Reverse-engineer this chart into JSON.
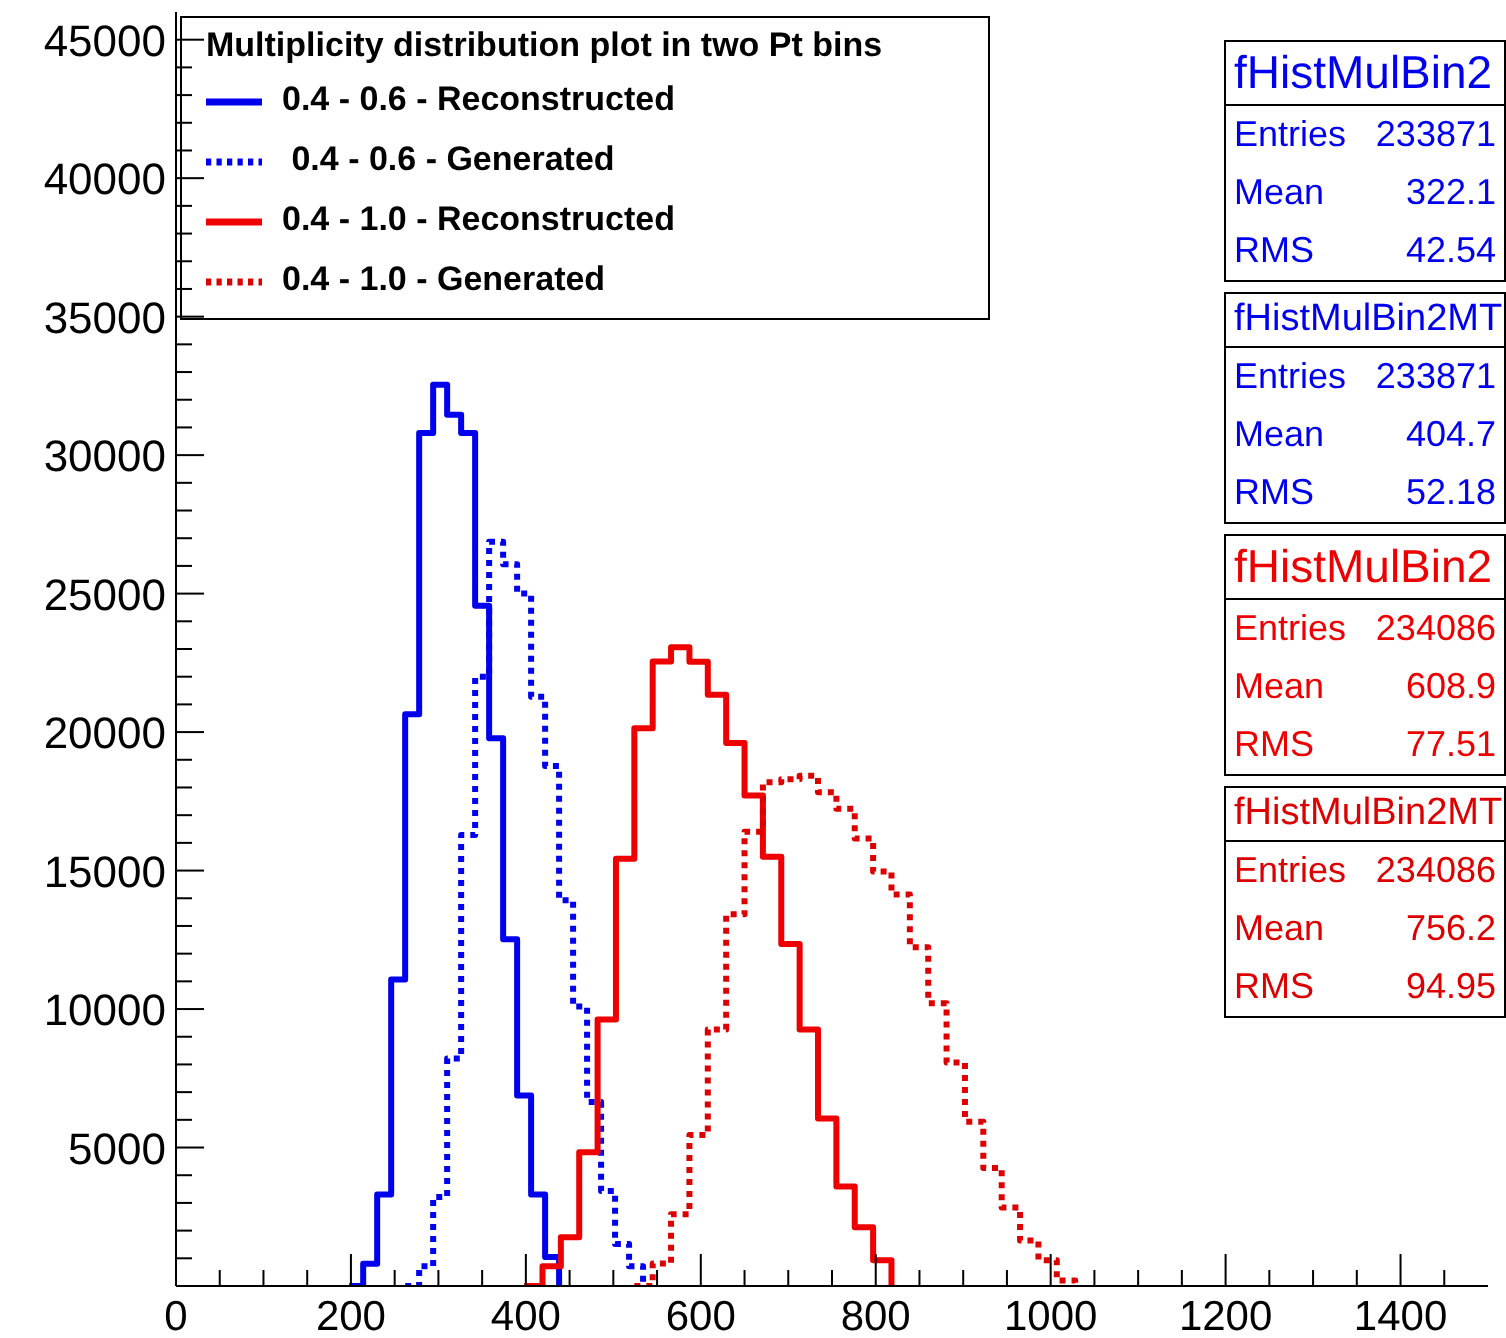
{
  "chart_data": {
    "type": "step",
    "legend_title": "Multiplicity distribution plot in two Pt bins",
    "legend": "top left",
    "xlim": [
      0,
      1500
    ],
    "ylim": [
      0,
      46000
    ],
    "xticks": [
      0,
      {
        "value": 50,
        "label": null
      },
      {
        "value": 100,
        "label": null
      },
      {
        "value": 150,
        "label": null
      },
      200,
      {
        "value": 250,
        "label": null
      },
      {
        "value": 300,
        "label": null
      },
      {
        "value": 350,
        "label": null
      },
      400,
      {
        "value": 450,
        "label": null
      },
      {
        "value": 500,
        "label": null
      },
      {
        "value": 550,
        "label": null
      },
      600,
      {
        "value": 650,
        "label": null
      },
      {
        "value": 700,
        "label": null
      },
      {
        "value": 750,
        "label": null
      },
      800,
      {
        "value": 850,
        "label": null
      },
      {
        "value": 900,
        "label": null
      },
      {
        "value": 950,
        "label": null
      },
      1000,
      {
        "value": 1050,
        "label": null
      },
      {
        "value": 1100,
        "label": null
      },
      {
        "value": 1150,
        "label": null
      },
      1200,
      {
        "value": 1250,
        "label": null
      },
      {
        "value": 1300,
        "label": null
      },
      {
        "value": 1350,
        "label": null
      },
      1400,
      {
        "value": 1450,
        "label": null
      }
    ],
    "yticks": [
      {
        "value": 1000,
        "label": null
      },
      {
        "value": 2000,
        "label": null
      },
      {
        "value": 3000,
        "label": null
      },
      {
        "value": 4000,
        "label": null
      },
      5000,
      {
        "value": 6000,
        "label": null
      },
      {
        "value": 7000,
        "label": null
      },
      {
        "value": 8000,
        "label": null
      },
      {
        "value": 9000,
        "label": null
      },
      10000,
      {
        "value": 11000,
        "label": null
      },
      {
        "value": 12000,
        "label": null
      },
      {
        "value": 13000,
        "label": null
      },
      {
        "value": 14000,
        "label": null
      },
      15000,
      {
        "value": 16000,
        "label": null
      },
      {
        "value": 17000,
        "label": null
      },
      {
        "value": 18000,
        "label": null
      },
      {
        "value": 19000,
        "label": null
      },
      20000,
      {
        "value": 21000,
        "label": null
      },
      {
        "value": 22000,
        "label": null
      },
      {
        "value": 23000,
        "label": null
      },
      {
        "value": 24000,
        "label": null
      },
      25000,
      {
        "value": 26000,
        "label": null
      },
      {
        "value": 27000,
        "label": null
      },
      {
        "value": 28000,
        "label": null
      },
      {
        "value": 29000,
        "label": null
      },
      30000,
      {
        "value": 31000,
        "label": null
      },
      {
        "value": 32000,
        "label": null
      },
      {
        "value": 33000,
        "label": null
      },
      {
        "value": 34000,
        "label": null
      },
      35000,
      {
        "value": 36000,
        "label": null
      },
      {
        "value": 37000,
        "label": null
      },
      {
        "value": 38000,
        "label": null
      },
      {
        "value": 39000,
        "label": null
      },
      40000,
      {
        "value": 41000,
        "label": null
      },
      {
        "value": 42000,
        "label": null
      },
      {
        "value": 43000,
        "label": null
      },
      {
        "value": 44000,
        "label": null
      },
      45000
    ],
    "series": [
      {
        "name": "0.4 - 0.6 - Reconstructed",
        "color": "#0000ee",
        "line_style": "solid",
        "x": [
          198,
          214,
          230,
          246,
          262,
          278,
          294,
          310,
          326,
          342,
          358,
          374,
          390,
          406,
          422,
          438
        ],
        "values": [
          0,
          800,
          3300,
          11070,
          20640,
          30800,
          32540,
          31460,
          30800,
          24560,
          19780,
          12520,
          6880,
          3300,
          1050,
          0
        ]
      },
      {
        "name": " 0.4 - 0.6 - Generated",
        "color": "#0000ee",
        "line_style": "dotted",
        "x": [
          262,
          278,
          294,
          310,
          326,
          342,
          358,
          374,
          390,
          406,
          422,
          438,
          454,
          470,
          486,
          502,
          518,
          534
        ],
        "values": [
          0,
          710,
          3210,
          8210,
          16280,
          22000,
          26870,
          26060,
          25000,
          21280,
          18780,
          13930,
          10090,
          6640,
          3430,
          1520,
          710,
          0
        ]
      },
      {
        "name": "0.4 - 1.0 - Reconstructed",
        "color": "#ee0000",
        "line_style": "solid",
        "x": [
          398,
          419,
          440,
          461,
          482,
          503,
          524,
          545,
          566,
          587,
          608,
          629,
          650,
          671,
          692,
          713,
          734,
          755,
          776,
          797,
          818
        ],
        "values": [
          0,
          710,
          1760,
          4830,
          9620,
          15430,
          20140,
          22550,
          23060,
          22540,
          21350,
          19610,
          17710,
          15500,
          12350,
          9260,
          6050,
          3590,
          2120,
          930,
          0
        ]
      },
      {
        "name": "0.4 - 1.0 - Generated",
        "color": "#dd0000",
        "line_style": "dotted",
        "x": [
          524,
          545,
          566,
          587,
          608,
          629,
          650,
          671,
          692,
          713,
          734,
          755,
          776,
          797,
          818,
          839,
          860,
          881,
          902,
          923,
          944,
          965,
          986,
          1007,
          1028
        ],
        "values": [
          0,
          810,
          2590,
          5450,
          9260,
          13420,
          16400,
          18190,
          18300,
          18420,
          17830,
          17230,
          16160,
          14970,
          14140,
          12230,
          10210,
          8070,
          5930,
          4260,
          2830,
          1640,
          930,
          200,
          0
        ]
      }
    ],
    "annotations": [
      "fHistMulBin2",
      "Entries 233871",
      "Mean 322.1",
      "RMS 42.54",
      "fHistMulBin2MT",
      "Entries 233871",
      "Mean 404.7",
      "RMS 52.18",
      "fHistMulBin2",
      "Entries 234086",
      "Mean 608.9",
      "RMS 77.51",
      "fHistMulBin2MT",
      "Entries 234086",
      "Mean 756.2",
      "RMS 94.95"
    ]
  }
}
